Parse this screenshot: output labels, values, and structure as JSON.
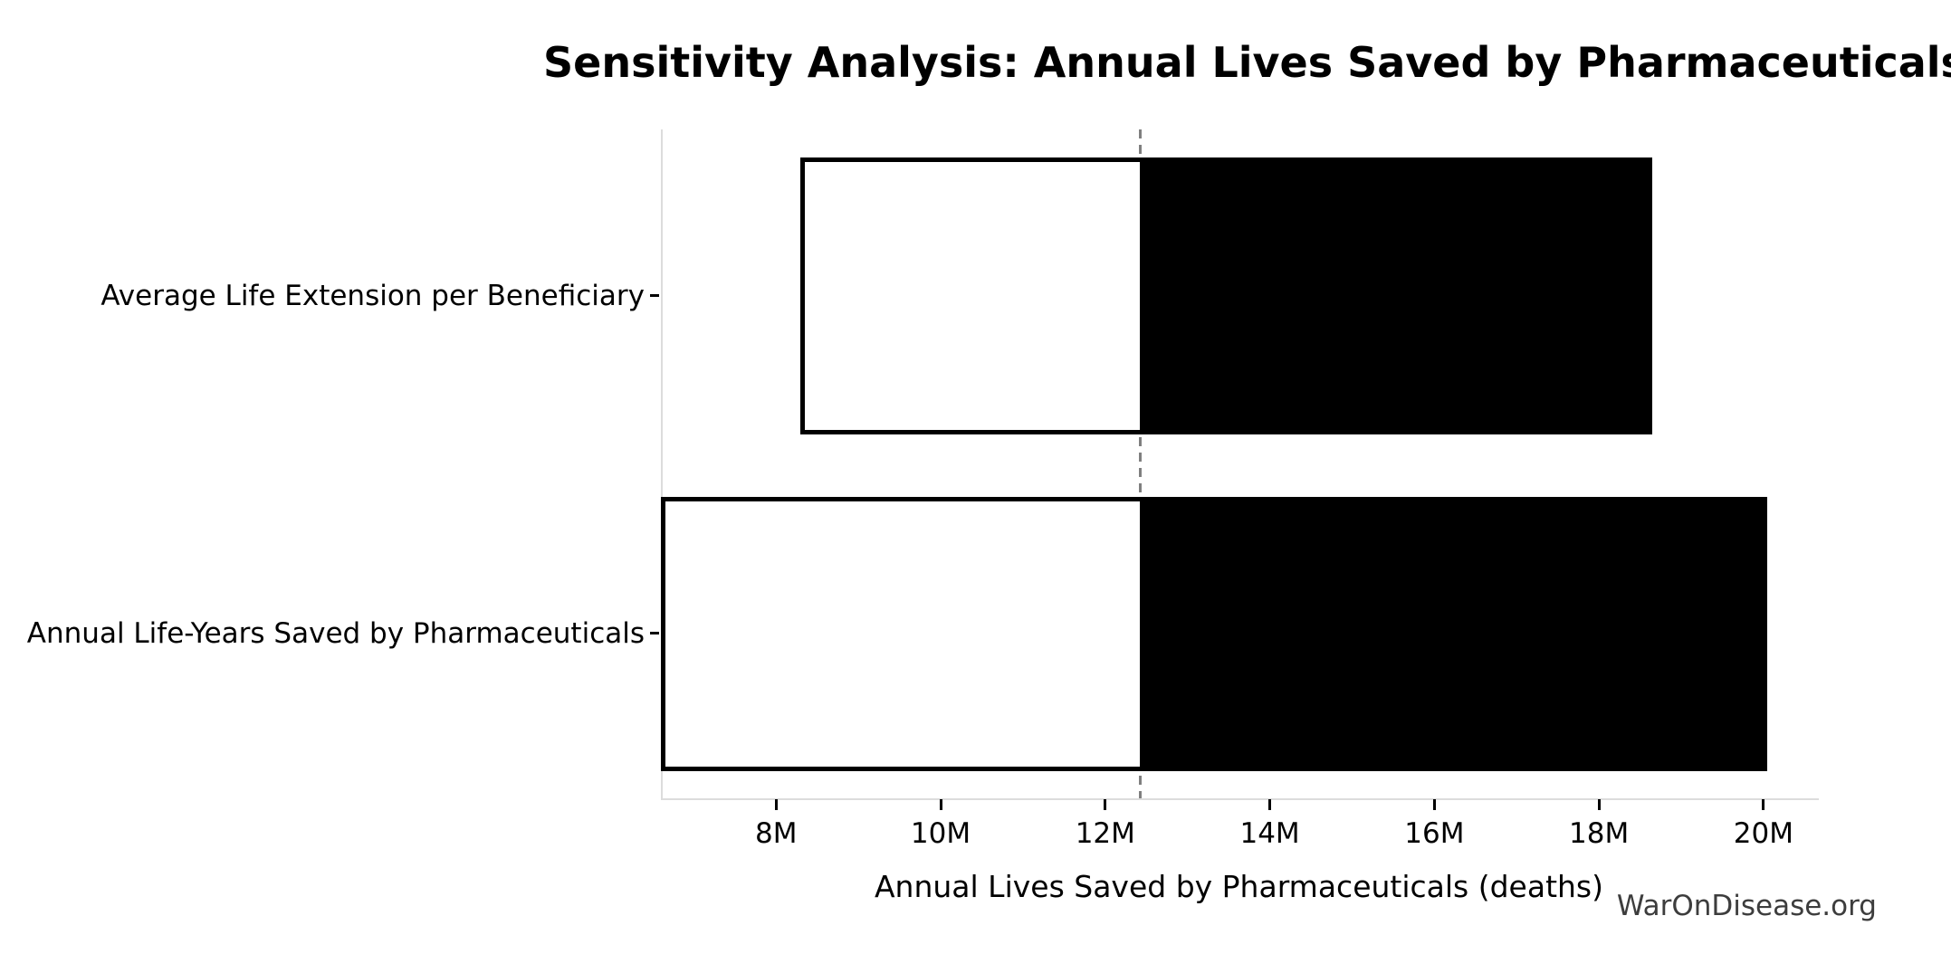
{
  "title": "Sensitivity Analysis: Annual Lives Saved by Pharmaceuticals",
  "watermark": "WarOnDisease.org",
  "chart_data": {
    "type": "bar",
    "subtype": "tornado-sensitivity-horizontal",
    "title": "Sensitivity Analysis: Annual Lives Saved by Pharmaceuticals",
    "xlabel": "Annual Lives Saved by Pharmaceuticals (deaths)",
    "unit": "M",
    "categories": [
      "Average Life Extension per Beneficiary",
      "Annual Life-Years Saved by Pharmaceuticals"
    ],
    "baseline": 12.4,
    "series": [
      {
        "name": "Average Life Extension per Beneficiary",
        "low": 8.3,
        "high": 18.6,
        "low_clipped_at_axis": false
      },
      {
        "name": "Annual Life-Years Saved by Pharmaceuticals",
        "low": 6.6,
        "high": 20.0,
        "low_clipped_at_axis": true
      }
    ],
    "x_ticks": [
      {
        "value": 8,
        "label": "8M"
      },
      {
        "value": 10,
        "label": "10M"
      },
      {
        "value": 12,
        "label": "12M"
      },
      {
        "value": 14,
        "label": "14M"
      },
      {
        "value": 16,
        "label": "16M"
      },
      {
        "value": 18,
        "label": "18M"
      },
      {
        "value": 20,
        "label": "20M"
      }
    ],
    "xlim": [
      6.6,
      20.65
    ],
    "grid": false,
    "legend": null,
    "colors": {
      "bar_fill_below_baseline": "#ffffff",
      "bar_fill_above_baseline": "#000000",
      "bar_edge": "#000000",
      "baseline_line": "#7f7f7f",
      "spine": "#dcdcdc",
      "tick": "#000000",
      "text": "#000000",
      "watermark_text": "#3d3d3d"
    }
  }
}
